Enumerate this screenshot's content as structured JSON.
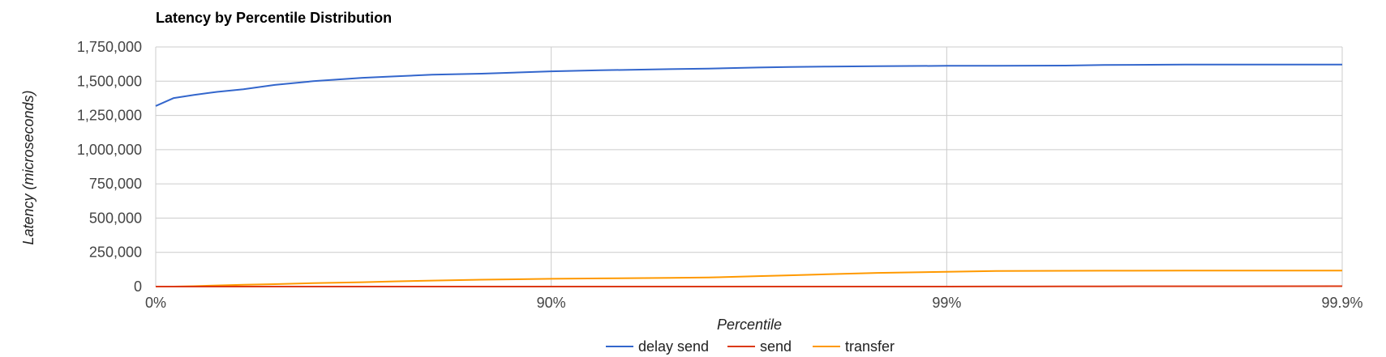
{
  "chart_data": {
    "type": "line",
    "title": "Latency by Percentile Distribution",
    "xlabel": "Percentile",
    "ylabel": "Latency (microseconds)",
    "x_scale": "percentile (inverse log of 1 - p)",
    "x_ticks": [
      {
        "value": 0,
        "label": "0%"
      },
      {
        "value": 90,
        "label": "90%"
      },
      {
        "value": 99,
        "label": "99%"
      },
      {
        "value": 99.9,
        "label": "99.9%"
      }
    ],
    "xlim": [
      0,
      99.9
    ],
    "ylim": [
      0,
      1750000
    ],
    "y_ticks": [
      {
        "value": 0,
        "label": "0"
      },
      {
        "value": 250000,
        "label": "250,000"
      },
      {
        "value": 500000,
        "label": "500,000"
      },
      {
        "value": 750000,
        "label": "750,000"
      },
      {
        "value": 1000000,
        "label": "1,000,000"
      },
      {
        "value": 1250000,
        "label": "1,250,000"
      },
      {
        "value": 1500000,
        "label": "1,500,000"
      },
      {
        "value": 1750000,
        "label": "1,750,000"
      }
    ],
    "grid": true,
    "legend_position": "bottom",
    "x": [
      0,
      10,
      20,
      30,
      40,
      50,
      60,
      70,
      75,
      80,
      85,
      90,
      92.5,
      95,
      96,
      97,
      97.5,
      98,
      98.5,
      99,
      99.25,
      99.5,
      99.6,
      99.75,
      99.9
    ],
    "series": [
      {
        "name": "delay send",
        "color": "#3366cc",
        "values": [
          1319000,
          1377000,
          1400000,
          1422000,
          1441000,
          1473000,
          1500000,
          1525000,
          1535000,
          1547000,
          1555000,
          1572000,
          1580000,
          1588000,
          1592000,
          1600000,
          1604000,
          1607000,
          1609000,
          1612000,
          1613000,
          1614000,
          1618000,
          1621000,
          1622000
        ]
      },
      {
        "name": "send",
        "color": "#dc3912",
        "values": [
          0,
          0,
          0,
          0,
          0,
          0,
          0,
          0,
          0,
          0,
          0,
          0,
          0,
          0,
          0,
          0,
          0,
          0,
          0,
          0,
          500,
          1000,
          1500,
          2500,
          3000
        ]
      },
      {
        "name": "transfer",
        "color": "#ff9900",
        "values": [
          0,
          0,
          3000,
          8000,
          13000,
          18000,
          25000,
          32000,
          38000,
          44000,
          50000,
          57000,
          60000,
          64000,
          66000,
          76000,
          82000,
          90000,
          100000,
          108000,
          114000,
          115000,
          116000,
          117000,
          117000
        ]
      }
    ]
  }
}
